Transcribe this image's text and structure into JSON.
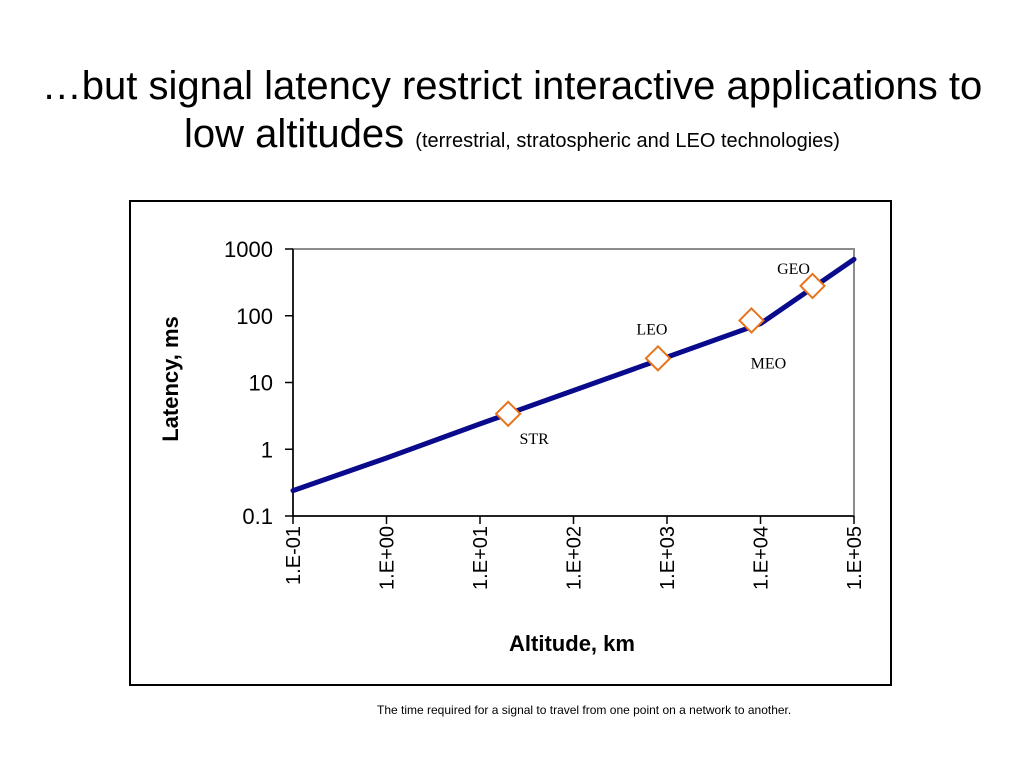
{
  "slide": {
    "title_main": "…but signal latency restrict interactive applications to low altitudes",
    "title_sub": "(terrestrial, stratospheric and LEO technologies)",
    "footnote": "The time required for a signal to travel from one point on a network to another."
  },
  "chart_data": {
    "type": "line",
    "title": "",
    "xlabel": "Altitude, km",
    "ylabel": "Latency, ms",
    "x_scale": "log",
    "y_scale": "log",
    "xlim": [
      0.1,
      100000
    ],
    "ylim": [
      0.1,
      1000
    ],
    "x_ticks": [
      0.1,
      1,
      10,
      100,
      1000,
      10000,
      100000
    ],
    "x_tick_labels": [
      "1.E-01",
      "1.E+00",
      "1.E+01",
      "1.E+02",
      "1.E+03",
      "1.E+04",
      "1.E+05"
    ],
    "y_ticks": [
      0.1,
      1,
      10,
      100,
      1000
    ],
    "y_tick_labels": [
      "0.1",
      "1",
      "10",
      "100",
      "1000"
    ],
    "grid": false,
    "series": [
      {
        "color": "#0a0a8c",
        "x": [
          0.1,
          1,
          10,
          100,
          1000,
          10000,
          100000
        ],
        "y": [
          0.24,
          0.74,
          2.4,
          7.6,
          24,
          76,
          700
        ]
      }
    ],
    "markers": [
      {
        "label": "STR",
        "x": 20,
        "y": 3.4,
        "label_position": "below-right"
      },
      {
        "label": "LEO",
        "x": 800,
        "y": 23,
        "label_position": "above"
      },
      {
        "label": "MEO",
        "x": 8000,
        "y": 85,
        "label_position": "below"
      },
      {
        "label": "GEO",
        "x": 36000,
        "y": 280,
        "label_position": "above-left"
      }
    ],
    "marker_style": {
      "shape": "diamond",
      "stroke": "#e8731a",
      "fill": "#ffffff"
    }
  }
}
